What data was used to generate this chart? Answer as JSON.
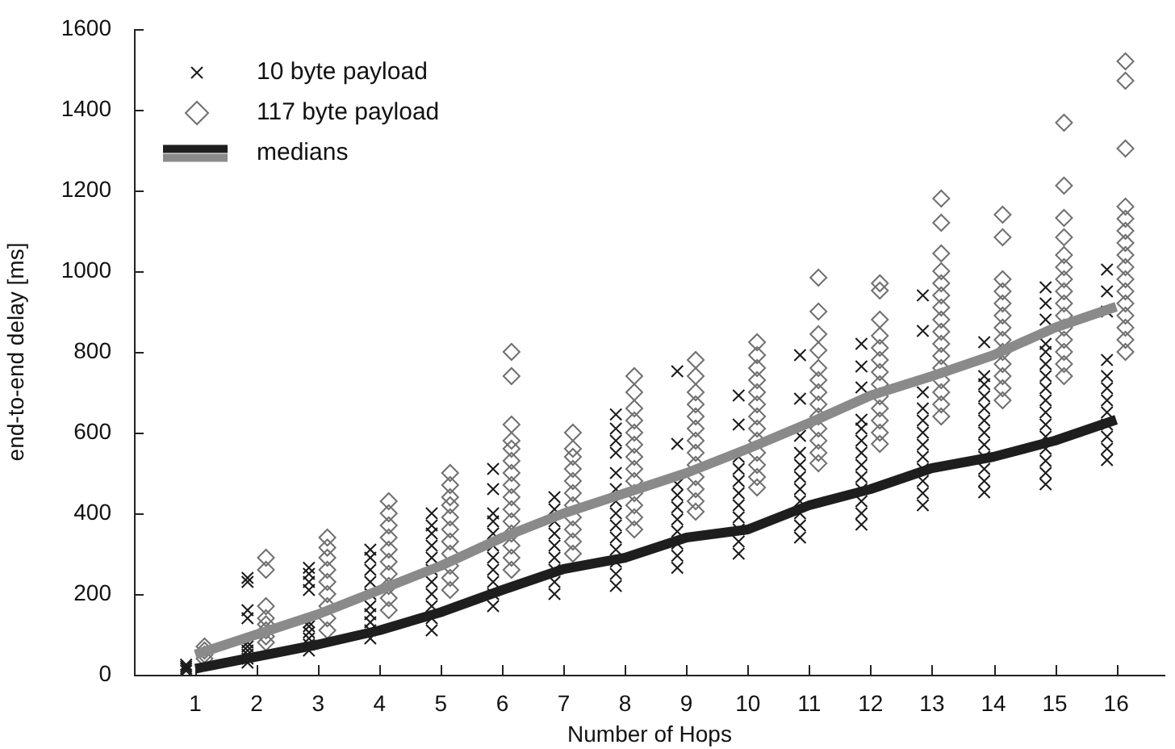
{
  "chart_data": {
    "type": "scatter",
    "xlabel": "Number of Hops",
    "ylabel": "end-to-end delay [ms]",
    "xlim": [
      0,
      16.8
    ],
    "xticks": [
      1,
      2,
      3,
      4,
      5,
      6,
      7,
      8,
      9,
      10,
      11,
      12,
      13,
      14,
      15,
      16
    ],
    "ylim": [
      0,
      1600
    ],
    "yticks": [
      0,
      200,
      400,
      600,
      800,
      1000,
      1200,
      1400,
      1600
    ],
    "legend": "top left",
    "series": [
      {
        "name": "10 byte payload",
        "marker": "cross",
        "color": "#1a1a1a",
        "x": [
          0.85,
          0.85,
          0.85,
          0.85,
          1.85,
          1.85,
          1.85,
          1.85,
          1.85,
          1.85,
          1.85,
          1.85,
          1.85,
          1.85,
          2.85,
          2.85,
          2.85,
          2.85,
          2.85,
          2.85,
          2.85,
          2.85,
          2.85,
          2.85,
          3.85,
          3.85,
          3.85,
          3.85,
          3.85,
          3.85,
          3.85,
          3.85,
          3.85,
          3.85,
          4.85,
          4.85,
          4.85,
          4.85,
          4.85,
          4.85,
          4.85,
          4.85,
          4.85,
          4.85,
          4.85,
          5.85,
          5.85,
          5.85,
          5.85,
          5.85,
          5.85,
          5.85,
          5.85,
          5.85,
          5.85,
          5.85,
          6.85,
          6.85,
          6.85,
          6.85,
          6.85,
          6.85,
          6.85,
          6.85,
          6.85,
          7.85,
          7.85,
          7.85,
          7.85,
          7.85,
          7.85,
          7.85,
          7.85,
          7.85,
          7.85,
          7.85,
          7.85,
          7.85,
          7.85,
          8.85,
          8.85,
          8.85,
          8.85,
          8.85,
          8.85,
          8.85,
          8.85,
          8.85,
          8.85,
          9.85,
          9.85,
          9.85,
          9.85,
          9.85,
          9.85,
          9.85,
          9.85,
          9.85,
          9.85,
          9.85,
          10.85,
          10.85,
          10.85,
          10.85,
          10.85,
          10.85,
          10.85,
          10.85,
          10.85,
          10.85,
          10.85,
          11.85,
          11.85,
          11.85,
          11.85,
          11.85,
          11.85,
          11.85,
          11.85,
          11.85,
          11.85,
          11.85,
          11.85,
          11.85,
          12.85,
          12.85,
          12.85,
          12.85,
          12.85,
          12.85,
          12.85,
          12.85,
          12.85,
          12.85,
          12.85,
          12.85,
          13.85,
          13.85,
          13.85,
          13.85,
          13.85,
          13.85,
          13.85,
          13.85,
          13.85,
          13.85,
          13.85,
          13.85,
          14.85,
          14.85,
          14.85,
          14.85,
          14.85,
          14.85,
          14.85,
          14.85,
          14.85,
          14.85,
          14.85,
          14.85,
          14.85,
          14.85,
          14.85,
          14.85,
          15.85,
          15.85,
          15.85,
          15.85,
          15.85,
          15.85,
          15.85,
          15.85,
          15.85,
          15.85,
          15.85,
          15.85
        ],
        "values": [
          10,
          15,
          20,
          25,
          30,
          40,
          50,
          60,
          70,
          80,
          140,
          160,
          230,
          240,
          60,
          75,
          90,
          105,
          120,
          130,
          210,
          230,
          250,
          265,
          90,
          110,
          130,
          150,
          170,
          200,
          230,
          260,
          290,
          310,
          110,
          140,
          170,
          200,
          230,
          260,
          290,
          320,
          350,
          370,
          400,
          170,
          200,
          230,
          260,
          290,
          320,
          350,
          380,
          400,
          460,
          510,
          200,
          230,
          260,
          290,
          320,
          350,
          380,
          410,
          440,
          220,
          250,
          280,
          310,
          340,
          370,
          400,
          430,
          460,
          500,
          550,
          580,
          610,
          645,
          265,
          295,
          325,
          355,
          385,
          415,
          445,
          472,
          572,
          752,
          300,
          330,
          360,
          390,
          420,
          450,
          480,
          510,
          540,
          620,
          692,
          340,
          370,
          400,
          430,
          460,
          490,
          520,
          550,
          592,
          684,
          792,
          372,
          400,
          430,
          460,
          490,
          520,
          550,
          580,
          610,
          632,
          712,
          764,
          820,
          420,
          450,
          480,
          510,
          540,
          570,
          600,
          630,
          660,
          700,
          852,
          940,
          452,
          480,
          510,
          540,
          570,
          600,
          630,
          660,
          690,
          720,
          740,
          824,
          472,
          500,
          530,
          560,
          590,
          620,
          650,
          680,
          710,
          740,
          770,
          800,
          820,
          880,
          920,
          960,
          532,
          560,
          590,
          620,
          650,
          680,
          710,
          740,
          780,
          900,
          950,
          1004
        ]
      },
      {
        "name": "117 byte payload",
        "marker": "diamond",
        "color": "#707070",
        "x": [
          1.15,
          1.15,
          1.15,
          1.15,
          2.15,
          2.15,
          2.15,
          2.15,
          2.15,
          2.15,
          2.15,
          2.15,
          3.15,
          3.15,
          3.15,
          3.15,
          3.15,
          3.15,
          3.15,
          3.15,
          3.15,
          4.15,
          4.15,
          4.15,
          4.15,
          4.15,
          4.15,
          4.15,
          4.15,
          4.15,
          4.15,
          5.15,
          5.15,
          5.15,
          5.15,
          5.15,
          5.15,
          5.15,
          5.15,
          5.15,
          5.15,
          5.15,
          6.15,
          6.15,
          6.15,
          6.15,
          6.15,
          6.15,
          6.15,
          6.15,
          6.15,
          6.15,
          6.15,
          6.15,
          6.15,
          6.15,
          6.15,
          7.15,
          7.15,
          7.15,
          7.15,
          7.15,
          7.15,
          7.15,
          7.15,
          7.15,
          7.15,
          7.15,
          8.15,
          8.15,
          8.15,
          8.15,
          8.15,
          8.15,
          8.15,
          8.15,
          8.15,
          8.15,
          8.15,
          8.15,
          8.15,
          9.15,
          9.15,
          9.15,
          9.15,
          9.15,
          9.15,
          9.15,
          9.15,
          9.15,
          9.15,
          9.15,
          9.15,
          9.15,
          10.15,
          10.15,
          10.15,
          10.15,
          10.15,
          10.15,
          10.15,
          10.15,
          10.15,
          10.15,
          10.15,
          10.15,
          10.15,
          11.15,
          11.15,
          11.15,
          11.15,
          11.15,
          11.15,
          11.15,
          11.15,
          11.15,
          11.15,
          11.15,
          11.15,
          11.15,
          12.15,
          12.15,
          12.15,
          12.15,
          12.15,
          12.15,
          12.15,
          12.15,
          12.15,
          12.15,
          12.15,
          12.15,
          12.15,
          13.15,
          13.15,
          13.15,
          13.15,
          13.15,
          13.15,
          13.15,
          13.15,
          13.15,
          13.15,
          13.15,
          13.15,
          13.15,
          13.15,
          13.15,
          13.15,
          14.15,
          14.15,
          14.15,
          14.15,
          14.15,
          14.15,
          14.15,
          14.15,
          14.15,
          14.15,
          14.15,
          14.15,
          14.15,
          15.15,
          15.15,
          15.15,
          15.15,
          15.15,
          15.15,
          15.15,
          15.15,
          15.15,
          15.15,
          15.15,
          15.15,
          15.15,
          15.15,
          15.15,
          16.15,
          16.15,
          16.15,
          16.15,
          16.15,
          16.15,
          16.15,
          16.15,
          16.15,
          16.15,
          16.15,
          16.15,
          16.15,
          16.15,
          16.15,
          16.15
        ],
        "values": [
          40,
          50,
          60,
          70,
          80,
          95,
          110,
          125,
          140,
          170,
          260,
          290,
          110,
          140,
          170,
          200,
          230,
          260,
          290,
          315,
          340,
          160,
          190,
          220,
          250,
          280,
          310,
          340,
          370,
          400,
          430,
          210,
          240,
          270,
          300,
          330,
          360,
          390,
          420,
          440,
          470,
          500,
          260,
          290,
          320,
          350,
          380,
          410,
          440,
          470,
          500,
          530,
          560,
          580,
          620,
          740,
          800,
          300,
          330,
          360,
          390,
          420,
          450,
          480,
          510,
          540,
          560,
          600,
          360,
          390,
          420,
          450,
          480,
          510,
          540,
          570,
          600,
          630,
          660,
          700,
          740,
          404,
          430,
          460,
          490,
          520,
          550,
          580,
          610,
          640,
          670,
          700,
          740,
          780,
          464,
          490,
          520,
          550,
          580,
          610,
          640,
          670,
          700,
          730,
          760,
          792,
          824,
          524,
          550,
          580,
          610,
          640,
          670,
          700,
          730,
          760,
          804,
          844,
          900,
          984,
          572,
          600,
          630,
          660,
          690,
          720,
          750,
          780,
          810,
          840,
          880,
          952,
          970,
          640,
          670,
          700,
          730,
          760,
          790,
          820,
          850,
          880,
          910,
          940,
          970,
          1000,
          1044,
          1120,
          1180,
          680,
          710,
          740,
          770,
          800,
          830,
          860,
          890,
          920,
          950,
          980,
          1084,
          1140,
          740,
          770,
          800,
          830,
          860,
          890,
          920,
          950,
          980,
          1010,
          1040,
          1084,
          1132,
          1212,
          1368,
          800,
          830,
          860,
          890,
          920,
          950,
          980,
          1010,
          1040,
          1070,
          1100,
          1130,
          1160,
          1304,
          1472,
          1520
        ]
      },
      {
        "name": "medians",
        "type": "line",
        "marker": "none",
        "line_style": "solid",
        "color": "#1e1e1e",
        "x": [
          1,
          2,
          3,
          4,
          5,
          6,
          7,
          8,
          9,
          10,
          11,
          12,
          13,
          14,
          15,
          16
        ],
        "values": [
          15,
          45,
          75,
          110,
          155,
          210,
          262,
          290,
          340,
          360,
          420,
          460,
          512,
          540,
          580,
          632
        ]
      },
      {
        "type": "line",
        "marker": "none",
        "line_style": "solid",
        "color": "#8a8a8a",
        "x": [
          1,
          2,
          3,
          4,
          5,
          6,
          7,
          8,
          9,
          10,
          11,
          12,
          13,
          14,
          15,
          16
        ],
        "values": [
          50,
          100,
          150,
          210,
          270,
          340,
          400,
          450,
          500,
          560,
          624,
          692,
          740,
          792,
          860,
          912
        ]
      }
    ]
  }
}
